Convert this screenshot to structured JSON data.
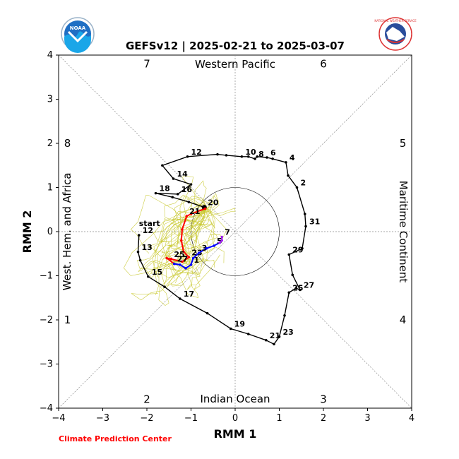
{
  "chart_data": {
    "type": "scatter",
    "title": "GEFSv12 | 2025-02-21 to 2025-03-07",
    "xlabel": "RMM 1",
    "ylabel": "RMM 2",
    "xlim": [
      -4,
      4
    ],
    "ylim": [
      -4,
      4
    ],
    "xticks": [
      "−4",
      "−3",
      "−2",
      "−1",
      "0",
      "1",
      "2",
      "3",
      "4"
    ],
    "yticks": [
      "−4",
      "−3",
      "−2",
      "−1",
      "0",
      "1",
      "2",
      "3",
      "4"
    ],
    "grid": false,
    "unit_circle_radius": 1,
    "regions": {
      "top": "Western Pacific",
      "bottom": "Indian Ocean",
      "left": "West. Hem. and Africa",
      "right": "Maritime Continent"
    },
    "phases": [
      {
        "label": "1",
        "x": -3.8,
        "y": -2.0
      },
      {
        "label": "2",
        "x": -2.0,
        "y": -3.8
      },
      {
        "label": "3",
        "x": 2.0,
        "y": -3.8
      },
      {
        "label": "4",
        "x": 3.8,
        "y": -2.0
      },
      {
        "label": "5",
        "x": 3.8,
        "y": 2.0
      },
      {
        "label": "6",
        "x": 2.0,
        "y": 3.8
      },
      {
        "label": "7",
        "x": -2.0,
        "y": 3.8
      },
      {
        "label": "8",
        "x": -3.8,
        "y": 2.0
      }
    ],
    "observed": {
      "color": "#000000",
      "points": [
        {
          "x": -2.18,
          "y": -0.08,
          "label": "12"
        },
        {
          "x": -2.2,
          "y": -0.46,
          "label": "13"
        },
        {
          "x": -2.15,
          "y": -0.65
        },
        {
          "x": -1.97,
          "y": -1.02,
          "label": "15"
        },
        {
          "x": -1.6,
          "y": -1.25
        },
        {
          "x": -1.25,
          "y": -1.52,
          "label": "17"
        },
        {
          "x": -0.63,
          "y": -1.85
        },
        {
          "x": -0.1,
          "y": -2.2,
          "label": "19"
        },
        {
          "x": 0.3,
          "y": -2.32
        },
        {
          "x": 0.7,
          "y": -2.46,
          "label": "21"
        },
        {
          "x": 0.88,
          "y": -2.55
        },
        {
          "x": 1.0,
          "y": -2.38,
          "label": "23"
        },
        {
          "x": 1.12,
          "y": -1.9
        },
        {
          "x": 1.22,
          "y": -1.38,
          "label": "25"
        },
        {
          "x": 1.38,
          "y": -1.28
        },
        {
          "x": 1.47,
          "y": -1.32,
          "label": "27"
        },
        {
          "x": 1.3,
          "y": -0.98
        },
        {
          "x": 1.22,
          "y": -0.52,
          "label": "29"
        },
        {
          "x": 1.52,
          "y": -0.38
        },
        {
          "x": 1.6,
          "y": 0.12,
          "label": "31"
        },
        {
          "x": 1.58,
          "y": 0.4
        },
        {
          "x": 1.4,
          "y": 1.0,
          "label": "2"
        },
        {
          "x": 1.2,
          "y": 1.27
        },
        {
          "x": 1.15,
          "y": 1.57,
          "label": "4"
        },
        {
          "x": 0.85,
          "y": 1.65
        },
        {
          "x": 0.72,
          "y": 1.68,
          "label": "6"
        },
        {
          "x": 0.5,
          "y": 1.7
        },
        {
          "x": 0.45,
          "y": 1.65,
          "label": "8"
        },
        {
          "x": 0.3,
          "y": 1.7
        },
        {
          "x": 0.15,
          "y": 1.7,
          "label": "10"
        },
        {
          "x": -0.2,
          "y": 1.73
        },
        {
          "x": -0.4,
          "y": 1.75
        },
        {
          "x": -1.08,
          "y": 1.7,
          "label": "12"
        },
        {
          "x": -1.65,
          "y": 1.5
        },
        {
          "x": -1.4,
          "y": 1.2,
          "label": "14"
        },
        {
          "x": -1.0,
          "y": 1.07
        },
        {
          "x": -1.3,
          "y": 0.85,
          "label": "16"
        },
        {
          "x": -1.8,
          "y": 0.87,
          "label": "18"
        },
        {
          "x": -1.42,
          "y": 0.78
        },
        {
          "x": -1.05,
          "y": 0.67
        },
        {
          "x": -0.7,
          "y": 0.55,
          "label": "20"
        }
      ]
    },
    "start_label": {
      "text": "start",
      "x": -2.18,
      "y": 0.1
    },
    "forecast": [
      {
        "color": "#ff0000",
        "points": [
          {
            "x": -0.68,
            "y": 0.52
          },
          {
            "x": -1.0,
            "y": 0.4
          },
          {
            "x": -1.1,
            "y": 0.35,
            "label": "21"
          },
          {
            "x": -1.2,
            "y": 0.05
          },
          {
            "x": -1.22,
            "y": -0.2
          },
          {
            "x": -1.17,
            "y": -0.45
          },
          {
            "x": -1.05,
            "y": -0.58,
            "label": "23"
          },
          {
            "x": -1.2,
            "y": -0.68
          },
          {
            "x": -1.45,
            "y": -0.62,
            "label": "25"
          },
          {
            "x": -1.55,
            "y": -0.6
          },
          {
            "x": -1.38,
            "y": -0.73,
            "label": "27"
          }
        ]
      },
      {
        "color": "#0000ff",
        "points": [
          {
            "x": -1.38,
            "y": -0.73
          },
          {
            "x": -1.25,
            "y": -0.75
          },
          {
            "x": -1.12,
            "y": -0.83
          },
          {
            "x": -1.0,
            "y": -0.75,
            "label": "1"
          },
          {
            "x": -0.95,
            "y": -0.6
          },
          {
            "x": -0.82,
            "y": -0.48,
            "label": "3"
          },
          {
            "x": -0.65,
            "y": -0.38
          },
          {
            "x": -0.48,
            "y": -0.32,
            "label": "5"
          },
          {
            "x": -0.35,
            "y": -0.25
          }
        ]
      },
      {
        "color": "#a020f0",
        "points": [
          {
            "x": -0.35,
            "y": -0.25
          },
          {
            "x": -0.3,
            "y": -0.2
          },
          {
            "x": -0.3,
            "y": -0.12,
            "label": "7"
          }
        ]
      }
    ],
    "ensemble_color": "#c9c930"
  },
  "footer": "Climate Prediction Center",
  "logos": {
    "left": "NOAA",
    "right": "NATIONAL WEATHER SERVICE"
  }
}
